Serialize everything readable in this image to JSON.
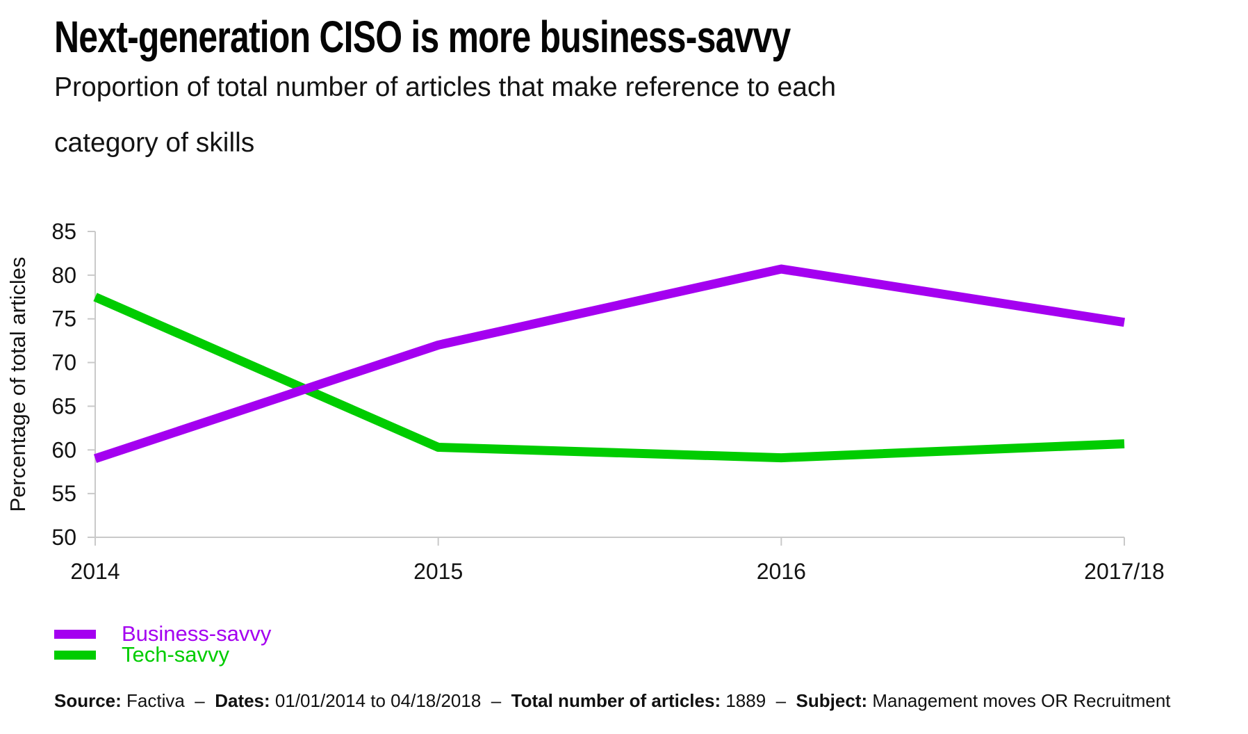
{
  "header": {
    "title": "Next-generation CISO is more business-savvy",
    "subtitle": "Proportion of total number of articles that make reference to each category of skills",
    "subtitle_lines": [
      "Proportion of total number of articles that make reference to each",
      "category of skills"
    ]
  },
  "chart_data": {
    "type": "line",
    "title": "Next-generation CISO is more business-savvy",
    "subtitle": "Proportion of total number of articles that make reference to each category of skills",
    "categories": [
      "2014",
      "2015",
      "2016",
      "2017/18"
    ],
    "series": [
      {
        "name": "Business-savvy",
        "color": "#A400F0",
        "values": [
          59.0,
          72.0,
          80.7,
          74.6
        ]
      },
      {
        "name": "Tech-savvy",
        "color": "#00CC00",
        "values": [
          77.5,
          60.3,
          59.1,
          60.7
        ]
      }
    ],
    "xlabel": "",
    "ylabel": "Percentage of total articles",
    "ylim": [
      50,
      85
    ],
    "ytick_step": 5,
    "yticks": [
      50,
      55,
      60,
      65,
      70,
      75,
      80,
      85
    ],
    "grid": false,
    "legend_position": "bottom-left",
    "axis_color": "#C9C9C9",
    "label_color": "#131313"
  },
  "footer": {
    "segments": [
      {
        "text": "Source:",
        "bold": true
      },
      {
        "text": " Factiva  –  ",
        "bold": false
      },
      {
        "text": "Dates:",
        "bold": true
      },
      {
        "text": " 01/01/2014 to 04/18/2018  –  ",
        "bold": false
      },
      {
        "text": "Total number of articles:",
        "bold": true
      },
      {
        "text": " 1889  –  ",
        "bold": false
      },
      {
        "text": "Subject:",
        "bold": true
      },
      {
        "text": " Management moves OR Recruitment",
        "bold": false
      }
    ]
  }
}
